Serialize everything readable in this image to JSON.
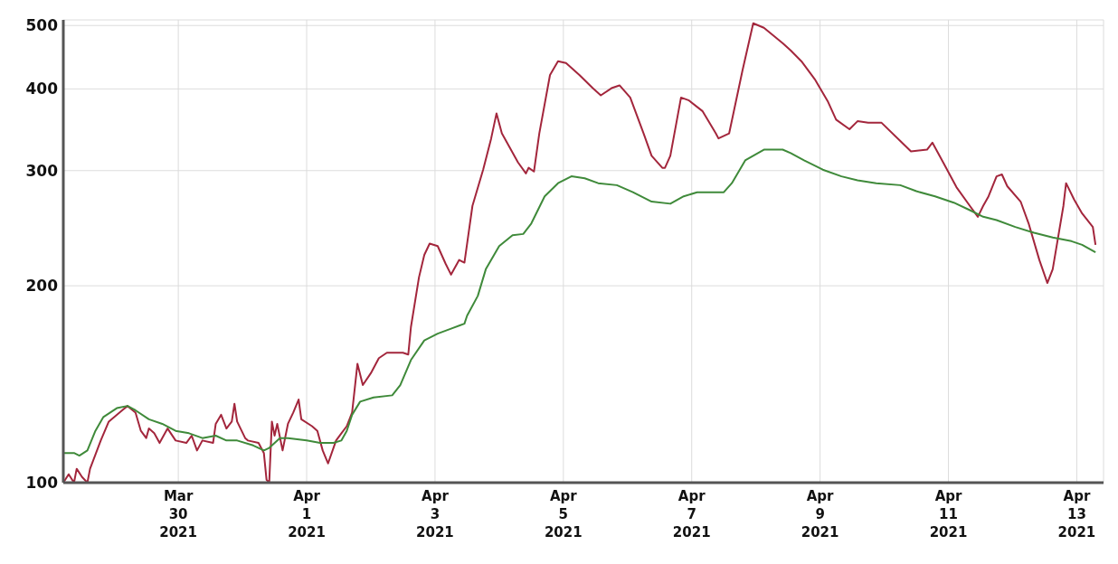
{
  "chart_data": {
    "type": "line",
    "log": true,
    "grid": true,
    "marker": "none",
    "line_style": "solid",
    "xlim": [
      "2021-03-28T05:00",
      "2021-04-13T10:00"
    ],
    "xticks": [
      {
        "value": "2021-03-30",
        "label": "Mar\n30\n2021"
      },
      {
        "value": "2021-04-01",
        "label": "Apr\n1\n2021"
      },
      {
        "value": "2021-04-03",
        "label": "Apr\n3\n2021"
      },
      {
        "value": "2021-04-05",
        "label": "Apr\n5\n2021"
      },
      {
        "value": "2021-04-07",
        "label": "Apr\n7\n2021"
      },
      {
        "value": "2021-04-09",
        "label": "Apr\n9\n2021"
      },
      {
        "value": "2021-04-11",
        "label": "Apr\n11\n2021"
      },
      {
        "value": "2021-04-13",
        "label": "Apr\n13\n2021"
      }
    ],
    "ylim": [
      100,
      510
    ],
    "yticks": [
      100,
      200,
      300,
      400,
      500
    ],
    "series": [
      {
        "color": "#a3263c",
        "x": [
          "2021-03-28T05:00",
          "2021-03-28T07:00",
          "2021-03-28T09:00",
          "2021-03-28T10:00",
          "2021-03-28T12:00",
          "2021-03-28T14:00",
          "2021-03-28T15:00",
          "2021-03-28T19:00",
          "2021-03-28T22:00",
          "2021-03-29T03:00",
          "2021-03-29T05:00",
          "2021-03-29T08:00",
          "2021-03-29T10:00",
          "2021-03-29T12:00",
          "2021-03-29T13:00",
          "2021-03-29T15:00",
          "2021-03-29T17:00",
          "2021-03-29T20:00",
          "2021-03-29T23:00",
          "2021-03-30T03:00",
          "2021-03-30T05:00",
          "2021-03-30T07:00",
          "2021-03-30T09:00",
          "2021-03-30T13:00",
          "2021-03-30T14:00",
          "2021-03-30T16:00",
          "2021-03-30T18:00",
          "2021-03-30T20:00",
          "2021-03-30T21:00",
          "2021-03-30T22:00",
          "2021-03-31T01:00",
          "2021-03-31T02:00",
          "2021-03-31T06:00",
          "2021-03-31T08:00",
          "2021-03-31T09:00",
          "2021-03-31T10:00",
          "2021-03-31T11:00",
          "2021-03-31T12:00",
          "2021-03-31T13:00",
          "2021-03-31T15:00",
          "2021-03-31T17:00",
          "2021-03-31T19:00",
          "2021-03-31T21:00",
          "2021-03-31T22:00",
          "2021-04-01T02:00",
          "2021-04-01T04:00",
          "2021-04-01T06:00",
          "2021-04-01T08:00",
          "2021-04-01T11:00",
          "2021-04-01T13:00",
          "2021-04-01T15:00",
          "2021-04-01T17:00",
          "2021-04-01T19:00",
          "2021-04-01T21:00",
          "2021-04-02T00:00",
          "2021-04-02T03:00",
          "2021-04-02T06:00",
          "2021-04-02T12:00",
          "2021-04-02T14:00",
          "2021-04-02T15:00",
          "2021-04-02T18:00",
          "2021-04-02T20:00",
          "2021-04-02T22:00",
          "2021-04-03T01:00",
          "2021-04-03T04:00",
          "2021-04-03T06:00",
          "2021-04-03T09:00",
          "2021-04-03T11:00",
          "2021-04-03T14:00",
          "2021-04-03T18:00",
          "2021-04-03T21:00",
          "2021-04-03T23:00",
          "2021-04-04T01:00",
          "2021-04-04T07:00",
          "2021-04-04T10:00",
          "2021-04-04T11:00",
          "2021-04-04T13:00",
          "2021-04-04T15:00",
          "2021-04-04T19:00",
          "2021-04-04T22:00",
          "2021-04-05T01:00",
          "2021-04-05T06:00",
          "2021-04-05T11:00",
          "2021-04-05T14:00",
          "2021-04-05T18:00",
          "2021-04-05T21:00",
          "2021-04-06T01:00",
          "2021-04-06T06:00",
          "2021-04-06T09:00",
          "2021-04-06T13:00",
          "2021-04-06T14:00",
          "2021-04-06T16:00",
          "2021-04-06T20:00",
          "2021-04-06T23:00",
          "2021-04-07T04:00",
          "2021-04-07T09:00",
          "2021-04-07T10:00",
          "2021-04-07T14:00",
          "2021-04-07T19:00",
          "2021-04-07T23:00",
          "2021-04-08T03:00",
          "2021-04-08T10:00",
          "2021-04-08T13:00",
          "2021-04-08T17:00",
          "2021-04-08T22:00",
          "2021-04-09T03:00",
          "2021-04-09T06:00",
          "2021-04-09T11:00",
          "2021-04-09T14:00",
          "2021-04-09T18:00",
          "2021-04-09T23:00",
          "2021-04-10T06:00",
          "2021-04-10T10:00",
          "2021-04-10T16:00",
          "2021-04-10T18:00",
          "2021-04-10T22:00",
          "2021-04-11T03:00",
          "2021-04-11T08:00",
          "2021-04-11T11:00",
          "2021-04-11T13:00",
          "2021-04-11T15:00",
          "2021-04-11T18:00",
          "2021-04-11T20:00",
          "2021-04-11T22:00",
          "2021-04-12T03:00",
          "2021-04-12T06:00",
          "2021-04-12T10:00",
          "2021-04-12T13:00",
          "2021-04-12T15:00",
          "2021-04-12T19:00",
          "2021-04-12T20:00",
          "2021-04-12T23:00",
          "2021-04-13T02:00",
          "2021-04-13T06:00",
          "2021-04-13T07:00"
        ],
        "values": [
          100,
          103,
          100,
          105,
          102,
          100,
          105,
          116,
          124,
          129,
          131,
          128,
          120,
          117,
          121,
          119,
          115,
          121,
          116,
          115,
          118,
          112,
          116,
          115,
          123,
          127,
          121,
          124,
          132,
          124,
          117,
          116,
          115,
          111,
          101,
          100,
          124,
          118,
          123,
          112,
          123,
          128,
          134,
          125,
          122,
          120,
          112,
          107,
          116,
          119,
          122,
          128,
          152,
          141,
          147,
          155,
          158,
          158,
          157,
          173,
          206,
          223,
          232,
          230,
          216,
          208,
          219,
          217,
          265,
          301,
          336,
          367,
          342,
          309,
          297,
          303,
          299,
          342,
          420,
          441,
          438,
          420,
          401,
          391,
          401,
          405,
          388,
          342,
          316,
          303,
          303,
          316,
          388,
          384,
          370,
          342,
          336,
          342,
          427,
          504,
          496,
          470,
          458,
          441,
          414,
          382,
          359,
          347,
          357,
          355,
          355,
          333,
          321,
          323,
          331,
          309,
          283,
          265,
          255,
          265,
          274,
          294,
          296,
          284,
          269,
          249,
          219,
          202,
          212,
          265,
          287,
          271,
          258,
          246,
          231
        ]
      },
      {
        "color": "#3f8a3a",
        "x": [
          "2021-03-28T05:00",
          "2021-03-28T09:00",
          "2021-03-28T11:00",
          "2021-03-28T14:00",
          "2021-03-28T17:00",
          "2021-03-28T20:00",
          "2021-03-29T01:00",
          "2021-03-29T05:00",
          "2021-03-29T08:00",
          "2021-03-29T13:00",
          "2021-03-29T18:00",
          "2021-03-29T23:00",
          "2021-03-30T04:00",
          "2021-03-30T09:00",
          "2021-03-30T14:00",
          "2021-03-30T18:00",
          "2021-03-30T22:00",
          "2021-03-31T04:00",
          "2021-03-31T08:00",
          "2021-03-31T10:00",
          "2021-03-31T14:00",
          "2021-03-31T17:00",
          "2021-04-01T00:00",
          "2021-04-01T05:00",
          "2021-04-01T10:00",
          "2021-04-01T13:00",
          "2021-04-01T15:00",
          "2021-04-01T17:00",
          "2021-04-01T20:00",
          "2021-04-02T01:00",
          "2021-04-02T08:00",
          "2021-04-02T11:00",
          "2021-04-02T15:00",
          "2021-04-02T20:00",
          "2021-04-03T01:00",
          "2021-04-03T06:00",
          "2021-04-03T11:00",
          "2021-04-03T12:00",
          "2021-04-03T16:00",
          "2021-04-03T19:00",
          "2021-04-04T00:00",
          "2021-04-04T05:00",
          "2021-04-04T09:00",
          "2021-04-04T12:00",
          "2021-04-04T17:00",
          "2021-04-04T22:00",
          "2021-04-05T03:00",
          "2021-04-05T08:00",
          "2021-04-05T13:00",
          "2021-04-05T20:00",
          "2021-04-06T02:00",
          "2021-04-06T09:00",
          "2021-04-06T16:00",
          "2021-04-06T21:00",
          "2021-04-07T02:00",
          "2021-04-07T12:00",
          "2021-04-07T15:00",
          "2021-04-07T20:00",
          "2021-04-08T03:00",
          "2021-04-08T10:00",
          "2021-04-08T13:00",
          "2021-04-08T18:00",
          "2021-04-09T01:00",
          "2021-04-09T08:00",
          "2021-04-09T14:00",
          "2021-04-09T21:00",
          "2021-04-10T06:00",
          "2021-04-10T12:00",
          "2021-04-10T19:00",
          "2021-04-11T02:00",
          "2021-04-11T08:00",
          "2021-04-11T13:00",
          "2021-04-11T18:00",
          "2021-04-12T01:00",
          "2021-04-12T08:00",
          "2021-04-12T15:00",
          "2021-04-12T22:00",
          "2021-04-13T02:00",
          "2021-04-13T07:00"
        ],
        "values": [
          111,
          111,
          110,
          112,
          120,
          126,
          130,
          131,
          129,
          125,
          123,
          120,
          119,
          117,
          118,
          116,
          116,
          114,
          112,
          113,
          117,
          117,
          116,
          115,
          115,
          116,
          120,
          127,
          133,
          135,
          136,
          141,
          154,
          165,
          169,
          172,
          175,
          180,
          193,
          212,
          230,
          239,
          240,
          249,
          274,
          287,
          294,
          292,
          287,
          285,
          278,
          269,
          267,
          274,
          278,
          278,
          287,
          311,
          323,
          323,
          319,
          311,
          301,
          294,
          290,
          287,
          285,
          279,
          274,
          268,
          261,
          255,
          252,
          246,
          241,
          237,
          234,
          231,
          225
        ]
      }
    ]
  }
}
